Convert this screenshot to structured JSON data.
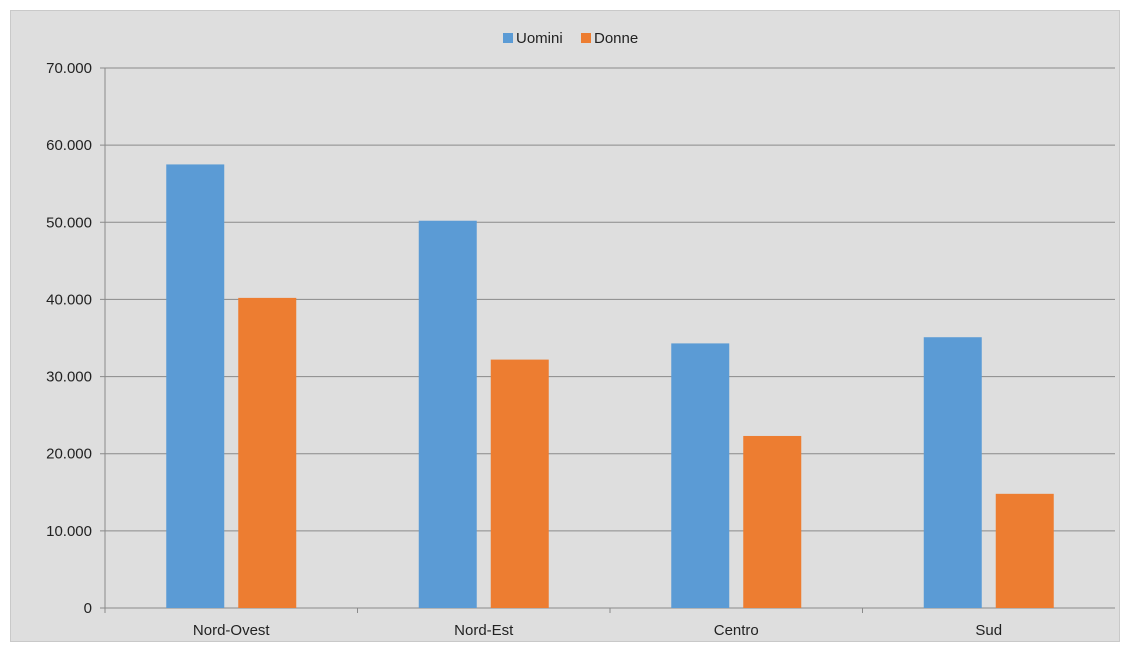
{
  "chart_data": {
    "type": "bar",
    "categories": [
      "Nord-Ovest",
      "Nord-Est",
      "Centro",
      "Sud"
    ],
    "series": [
      {
        "name": "Uomini",
        "color": "#5b9bd5",
        "values": [
          57500,
          50200,
          34300,
          35100
        ]
      },
      {
        "name": "Donne",
        "color": "#ed7d31",
        "values": [
          40200,
          32200,
          22300,
          14800
        ]
      }
    ],
    "yticks": [
      "0",
      "10.000",
      "20.000",
      "30.000",
      "40.000",
      "50.000",
      "60.000",
      "70.000"
    ],
    "ylim": [
      0,
      70000
    ],
    "grid": true,
    "legend_position": "top-center",
    "gridline_color": "#8a8a8a",
    "background_color": "#dedede"
  }
}
